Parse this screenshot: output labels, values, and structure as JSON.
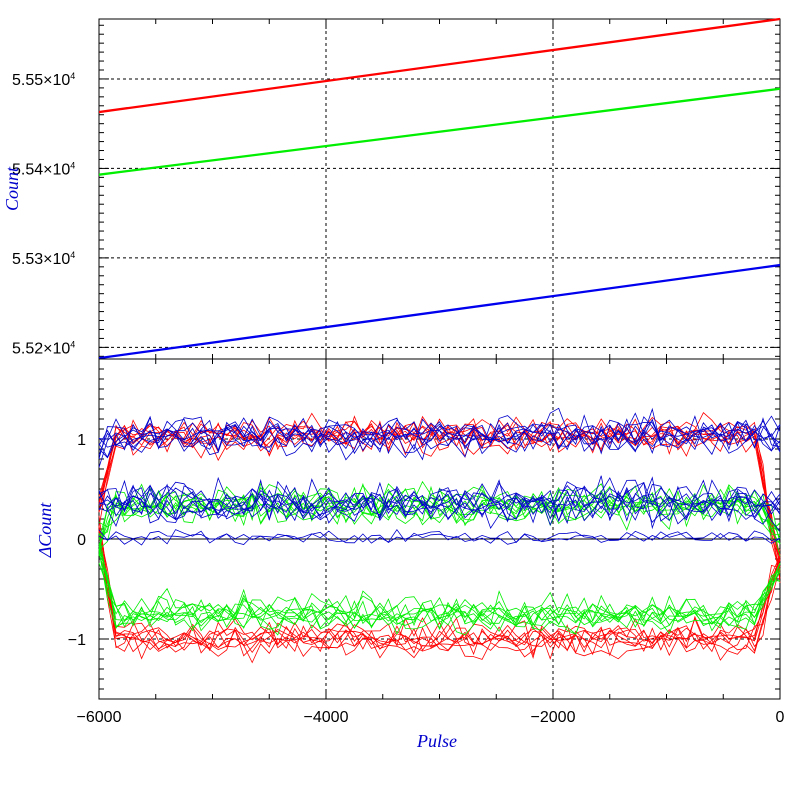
{
  "chart_data": [
    {
      "type": "line",
      "panel": "top",
      "ylabel": "Count",
      "xlabel": "",
      "xlim": [
        -6000,
        0
      ],
      "ylim": [
        55187,
        55567
      ],
      "ytick_labels": [
        {
          "value": 55200,
          "mantissa": "5.52",
          "exp": "4"
        },
        {
          "value": 55300,
          "mantissa": "5.53",
          "exp": "4"
        },
        {
          "value": 55400,
          "mantissa": "5.54",
          "exp": "4"
        },
        {
          "value": 55500,
          "mantissa": "5.55",
          "exp": "4"
        }
      ],
      "grid": true,
      "series": [
        {
          "color": "#ff0000",
          "x": [
            -6000,
            0
          ],
          "y": [
            55463,
            55567
          ]
        },
        {
          "color": "#00ee00",
          "x": [
            -6000,
            0
          ],
          "y": [
            55393,
            55489
          ]
        },
        {
          "color": "#0000ee",
          "x": [
            -6000,
            0
          ],
          "y": [
            55188,
            55292
          ]
        }
      ]
    },
    {
      "type": "line",
      "panel": "bottom",
      "ylabel": "ΔCount",
      "xlabel": "Pulse",
      "xlim": [
        -6000,
        0
      ],
      "ylim": [
        -1.6,
        1.8
      ],
      "ytick_labels": [
        {
          "value": -1,
          "label": "−1"
        },
        {
          "value": 0,
          "label": "0"
        },
        {
          "value": 1,
          "label": "1"
        }
      ],
      "xtick_labels": [
        {
          "value": -6000,
          "label": "−6000"
        },
        {
          "value": -4000,
          "label": "−4000"
        },
        {
          "value": -2000,
          "label": "−2000"
        },
        {
          "value": 0,
          "label": "0"
        }
      ],
      "grid": true,
      "residual_bands": [
        {
          "color": "#ff0000",
          "level": 1.05,
          "spread": 0.13,
          "count": 8,
          "start": 0.3,
          "end": -0.3
        },
        {
          "color": "#ff0000",
          "level": -1.0,
          "spread": 0.13,
          "count": 8,
          "start": 0.1,
          "end": -0.2
        },
        {
          "color": "#00ee00",
          "level": 0.35,
          "spread": 0.15,
          "count": 9,
          "start": 0.0,
          "end": 0.0
        },
        {
          "color": "#00ee00",
          "level": -0.75,
          "spread": 0.13,
          "count": 9,
          "start": -0.1,
          "end": -0.3
        },
        {
          "color": "#0000cc",
          "level": 1.05,
          "spread": 0.15,
          "count": 8,
          "start": 0.9,
          "end": 1.0
        },
        {
          "color": "#0000cc",
          "level": 0.35,
          "spread": 0.17,
          "count": 8,
          "start": 0.4,
          "end": 0.3
        },
        {
          "color": "#0000cc",
          "level": 0.0,
          "spread": 0.06,
          "count": 2,
          "start": 0.0,
          "end": 0.0
        }
      ]
    }
  ]
}
